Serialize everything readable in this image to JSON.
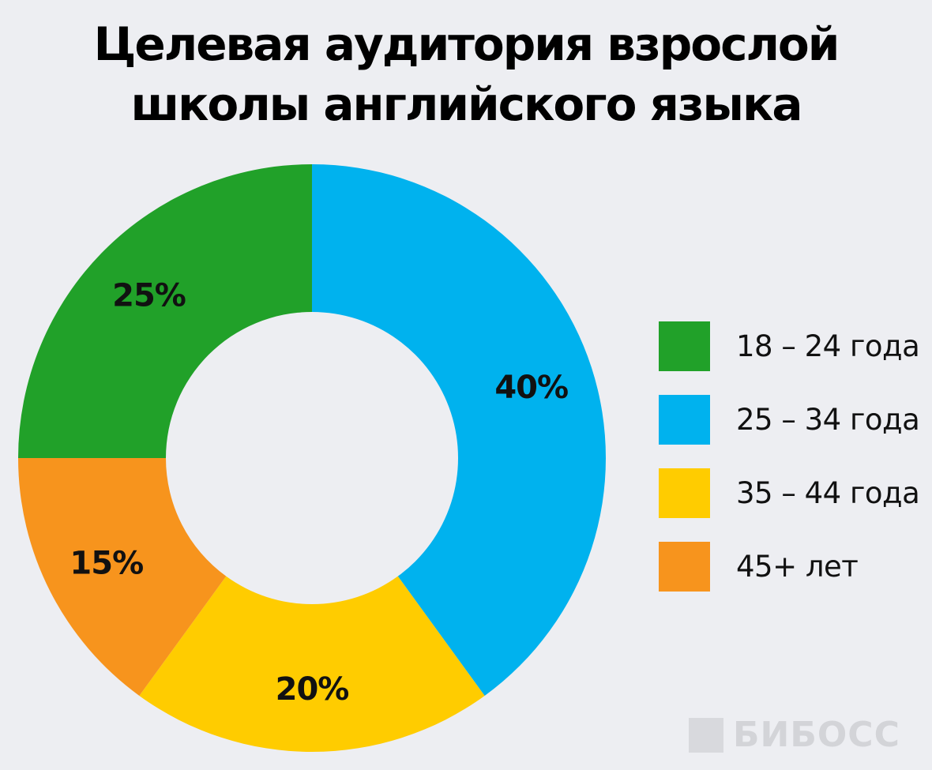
{
  "header": {
    "title_line1": "Целевая аудитория взрослой",
    "title_line2": "школы английского языка"
  },
  "chart_data": {
    "type": "pie",
    "style": "donut",
    "title": "Целевая аудитория взрослой школы английского языка",
    "categories": [
      "18 – 24 года",
      "25 – 34 года",
      "35 – 44 года",
      "45+ лет"
    ],
    "values": [
      25,
      40,
      20,
      15
    ],
    "value_labels": [
      "25%",
      "40%",
      "20%",
      "15%"
    ],
    "colors": [
      "#21a129",
      "#00b2ee",
      "#ffcc00",
      "#f7941d"
    ],
    "order_clockwise_from_top": [
      "25 – 34 года",
      "35 – 44 года",
      "45+ лет",
      "18 – 24 года"
    ],
    "legend_placement": "right"
  },
  "legend": {
    "items": [
      {
        "label": "18 – 24 года",
        "color": "#21a129"
      },
      {
        "label": "25 – 34 года",
        "color": "#00b2ee"
      },
      {
        "label": "35 – 44 года",
        "color": "#ffcc00"
      },
      {
        "label": "45+ лет",
        "color": "#f7941d"
      }
    ]
  },
  "watermark": {
    "text": "БИБОСС"
  }
}
